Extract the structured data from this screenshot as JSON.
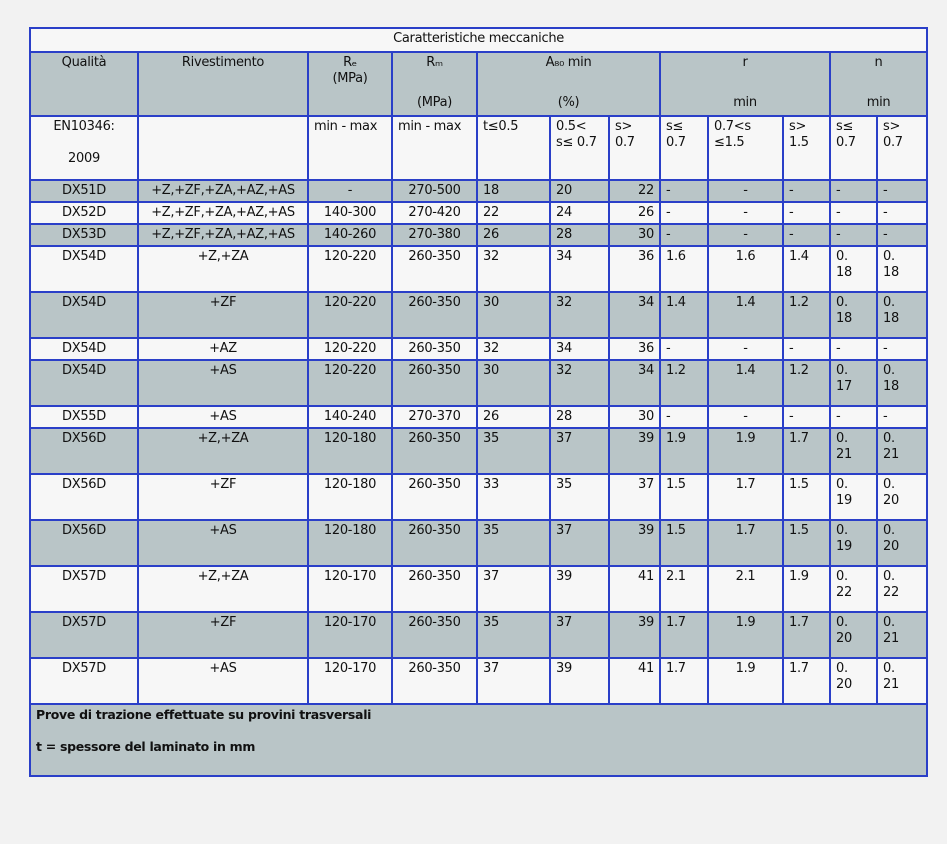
{
  "title": "Caratteristiche meccaniche",
  "header": {
    "qualita": "Qualità",
    "rivestimento": "Rivestimento",
    "re": "Rₑ",
    "re_unit": "(MPa)",
    "rm": "Rₘ",
    "rm_unit": "(MPa)",
    "a80": "A₈₀  min",
    "a80_unit": "(%)",
    "r": "r",
    "r_unit": "min",
    "n": "n",
    "n_unit": "min"
  },
  "subheader": {
    "norm_1": "EN10346:",
    "norm_2": "2009",
    "re": "min - max",
    "rm": "min - max",
    "a1": "t≤0.5",
    "a2": "0.5< s≤ 0.7",
    "a3": "s> 0.7",
    "r1": "s≤ 0.7",
    "r2": "0.7<s ≤1.5",
    "r3": "s> 1.5",
    "n1": "s≤ 0.7",
    "n2": "s> 0.7"
  },
  "rows": [
    [
      "DX51D",
      "+Z,+ZF,+ZA,+AZ,+AS",
      "-",
      "270-500",
      "18",
      "20",
      "22",
      "-",
      "-",
      "-",
      "-",
      "-"
    ],
    [
      "DX52D",
      "+Z,+ZF,+ZA,+AZ,+AS",
      "140-300",
      "270-420",
      "22",
      "24",
      "26",
      "-",
      "-",
      "-",
      "-",
      "-"
    ],
    [
      "DX53D",
      "+Z,+ZF,+ZA,+AZ,+AS",
      "140-260",
      "270-380",
      "26",
      "28",
      "30",
      "-",
      "-",
      "-",
      "-",
      "-"
    ],
    [
      "DX54D",
      "+Z,+ZA",
      "120-220",
      "260-350",
      "32",
      "34",
      "36",
      "1.6",
      "1.6",
      "1.4",
      "0.18",
      "0.18"
    ],
    [
      "DX54D",
      "+ZF",
      "120-220",
      "260-350",
      "30",
      "32",
      "34",
      "1.4",
      "1.4",
      "1.2",
      "0.18",
      "0.18"
    ],
    [
      "DX54D",
      "+AZ",
      "120-220",
      "260-350",
      "32",
      "34",
      "36",
      "-",
      "-",
      "-",
      "-",
      "-"
    ],
    [
      "DX54D",
      "+AS",
      "120-220",
      "260-350",
      "30",
      "32",
      "34",
      "1.2",
      "1.4",
      "1.2",
      "0.17",
      "0.18"
    ],
    [
      "DX55D",
      "+AS",
      "140-240",
      "270-370",
      "26",
      "28",
      "30",
      "-",
      "-",
      "-",
      "-",
      "-"
    ],
    [
      "DX56D",
      "+Z,+ZA",
      "120-180",
      "260-350",
      "35",
      "37",
      "39",
      "1.9",
      "1.9",
      "1.7",
      "0.21",
      "0.21"
    ],
    [
      "DX56D",
      "+ZF",
      "120-180",
      "260-350",
      "33",
      "35",
      "37",
      "1.5",
      "1.7",
      "1.5",
      "0.19",
      "0.20"
    ],
    [
      "DX56D",
      "+AS",
      "120-180",
      "260-350",
      "35",
      "37",
      "39",
      "1.5",
      "1.7",
      "1.5",
      "0.19",
      "0.20"
    ],
    [
      "DX57D",
      "+Z,+ZA",
      "120-170",
      "260-350",
      "37",
      "39",
      "41",
      "2.1",
      "2.1",
      "1.9",
      "0.22",
      "0.22"
    ],
    [
      "DX57D",
      "+ZF",
      "120-170",
      "260-350",
      "35",
      "37",
      "39",
      "1.7",
      "1.9",
      "1.7",
      "0.20",
      "0.21"
    ],
    [
      "DX57D",
      "+AS",
      "120-170",
      "260-350",
      "37",
      "39",
      "41",
      "1.7",
      "1.9",
      "1.7",
      "0.20",
      "0.21"
    ]
  ],
  "footer": {
    "note1": "Prove di trazione effettuate su provini trasversali",
    "note2": "t = spessore del laminato in mm"
  },
  "colors": {
    "border": "#2a3fc8",
    "shaded": "#b9c5c7",
    "plain": "#f7f7f7"
  }
}
